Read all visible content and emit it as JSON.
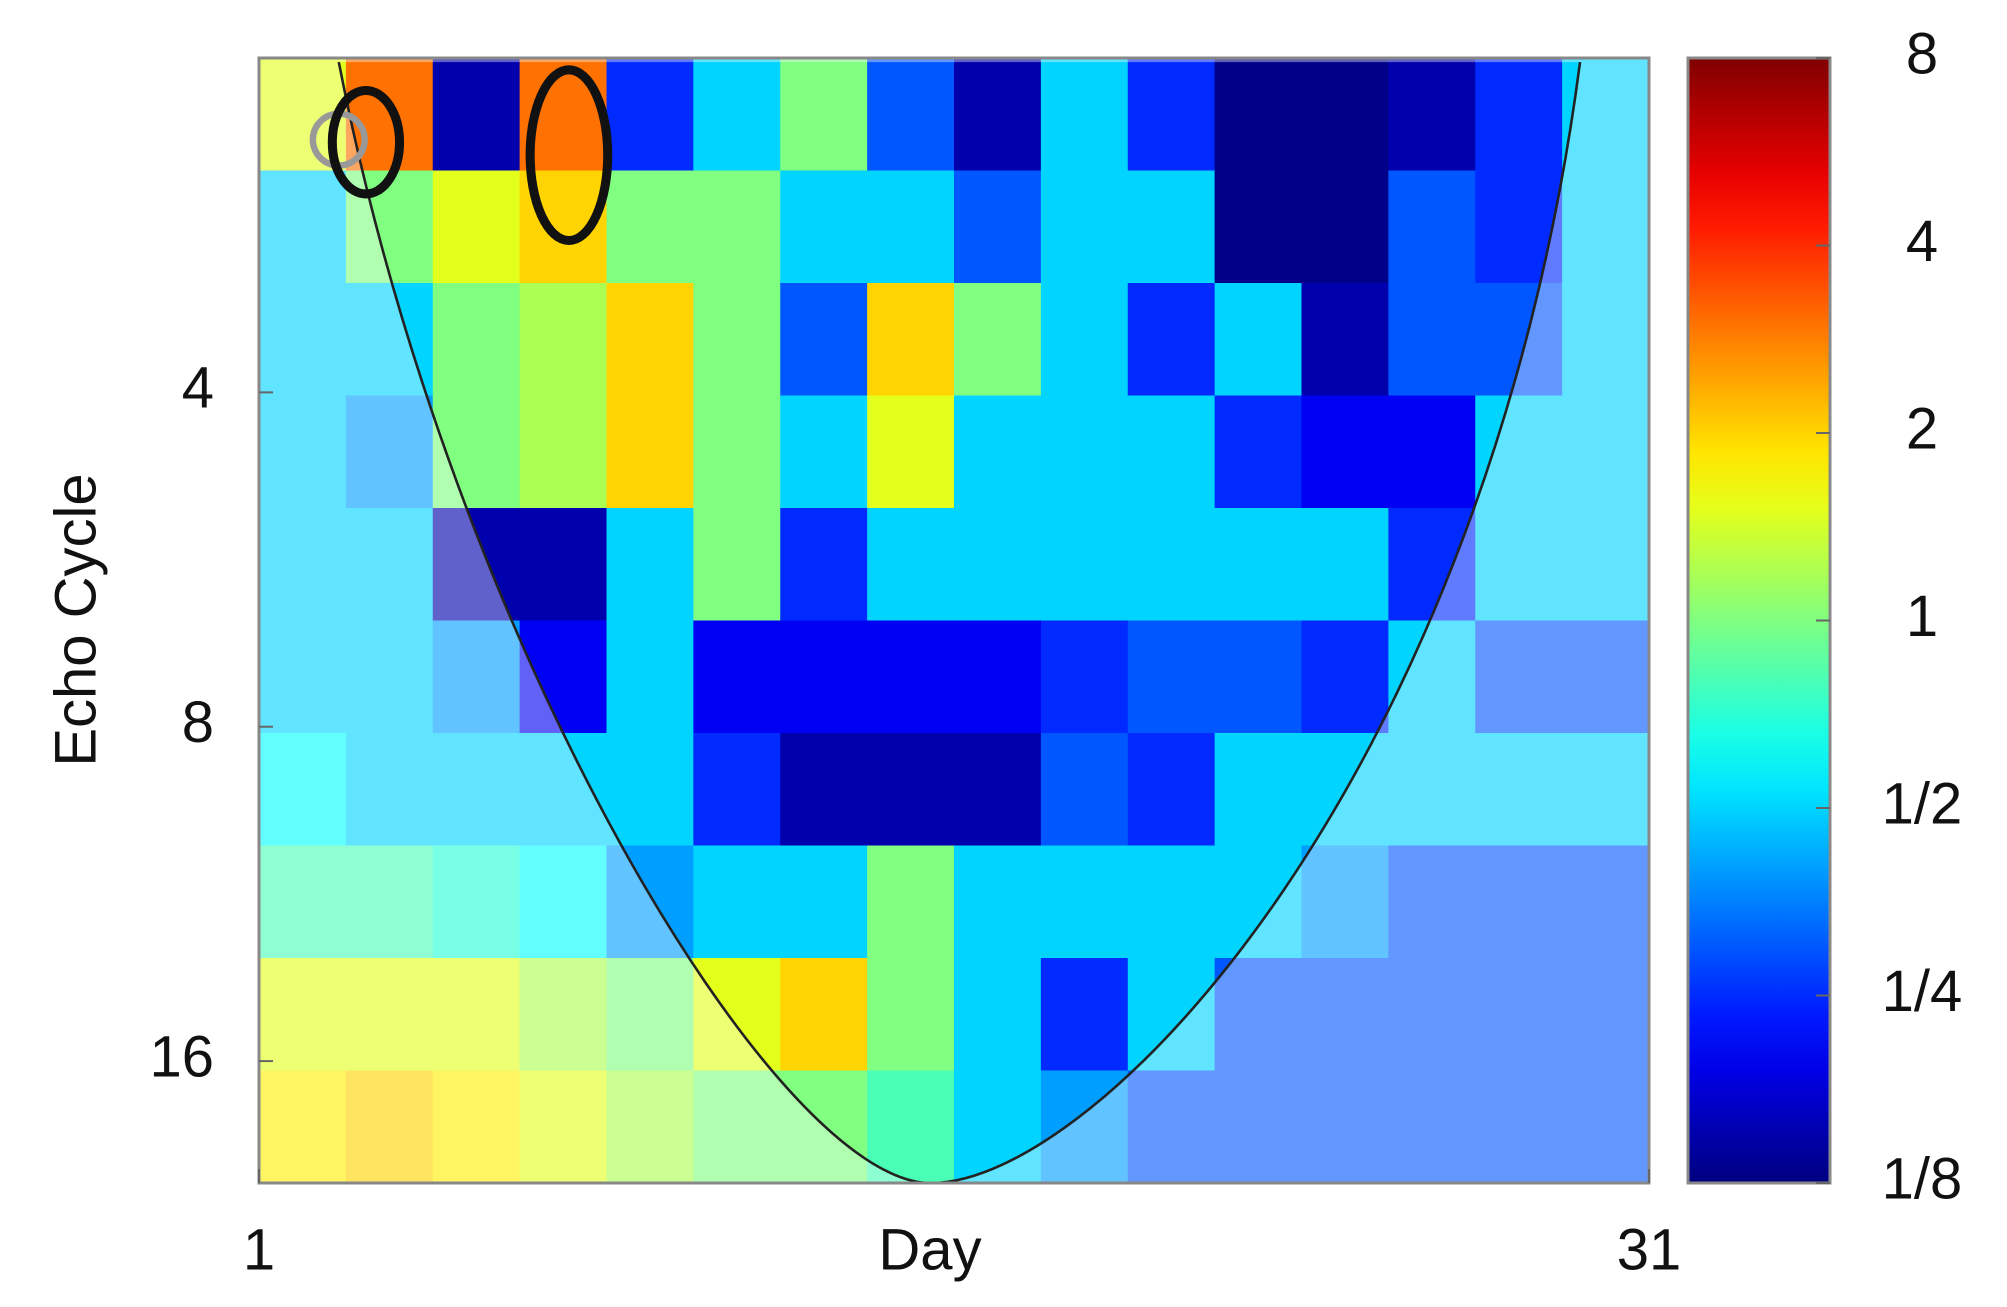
{
  "chart_data": {
    "type": "heatmap",
    "x_label": "Day",
    "y_label": "Echo Cycle",
    "xlim": [
      1,
      31
    ],
    "xticks": [
      1,
      31
    ],
    "ylim": [
      2,
      20.6
    ],
    "yticks": [
      4,
      8,
      16
    ],
    "y_log": true,
    "y_inverted": true,
    "colormap": "jet",
    "z": [
      [
        1.5,
        3,
        0.15,
        3,
        0.25,
        0.5,
        1,
        0.3,
        0.15,
        0.5,
        0.25,
        0.13,
        0.13,
        0.15,
        0.25,
        0.5
      ],
      [
        0.5,
        1,
        1.5,
        2,
        1,
        1,
        0.5,
        0.5,
        0.3,
        0.5,
        0.5,
        0.13,
        0.13,
        0.3,
        0.25,
        0.5
      ],
      [
        0.5,
        0.5,
        1,
        1.2,
        2,
        1,
        0.3,
        2,
        1,
        0.5,
        0.25,
        0.5,
        0.15,
        0.3,
        0.3,
        0.5
      ],
      [
        0.5,
        0.4,
        1,
        1.2,
        2,
        1,
        0.5,
        1.5,
        0.5,
        0.5,
        0.5,
        0.25,
        0.2,
        0.2,
        0.5,
        0.5
      ],
      [
        0.5,
        0.5,
        0.15,
        0.15,
        0.5,
        1,
        0.25,
        0.5,
        0.5,
        0.5,
        0.5,
        0.5,
        0.5,
        0.25,
        0.5,
        0.5
      ],
      [
        0.5,
        0.5,
        0.4,
        0.2,
        0.5,
        0.2,
        0.2,
        0.2,
        0.2,
        0.25,
        0.3,
        0.3,
        0.25,
        0.5,
        0.3,
        0.3
      ],
      [
        0.6,
        0.5,
        0.5,
        0.5,
        0.5,
        0.25,
        0.15,
        0.15,
        0.15,
        0.3,
        0.25,
        0.5,
        0.5,
        0.5,
        0.5,
        0.5
      ],
      [
        0.8,
        0.8,
        0.7,
        0.6,
        0.4,
        0.5,
        0.5,
        1,
        0.5,
        0.5,
        0.5,
        0.5,
        0.4,
        0.3,
        0.3,
        0.3
      ],
      [
        1.5,
        1.5,
        1.5,
        1.2,
        1,
        1.5,
        2,
        1,
        0.5,
        0.25,
        0.5,
        0.3,
        0.3,
        0.3,
        0.3,
        0.3
      ],
      [
        1.8,
        2,
        1.8,
        1.5,
        1.2,
        1,
        1,
        0.8,
        0.5,
        0.4,
        0.3,
        0.3,
        0.3,
        0.3,
        0.3,
        0.3
      ]
    ],
    "colorbar": {
      "lim": [
        0.125,
        8
      ],
      "log": true,
      "ticks": [
        8,
        4,
        2,
        1,
        {
          "value": 0.5,
          "label": "1/2"
        },
        {
          "value": 0.25,
          "label": "1/4"
        },
        {
          "value": 0.125,
          "label": "1/8"
        }
      ]
    }
  }
}
